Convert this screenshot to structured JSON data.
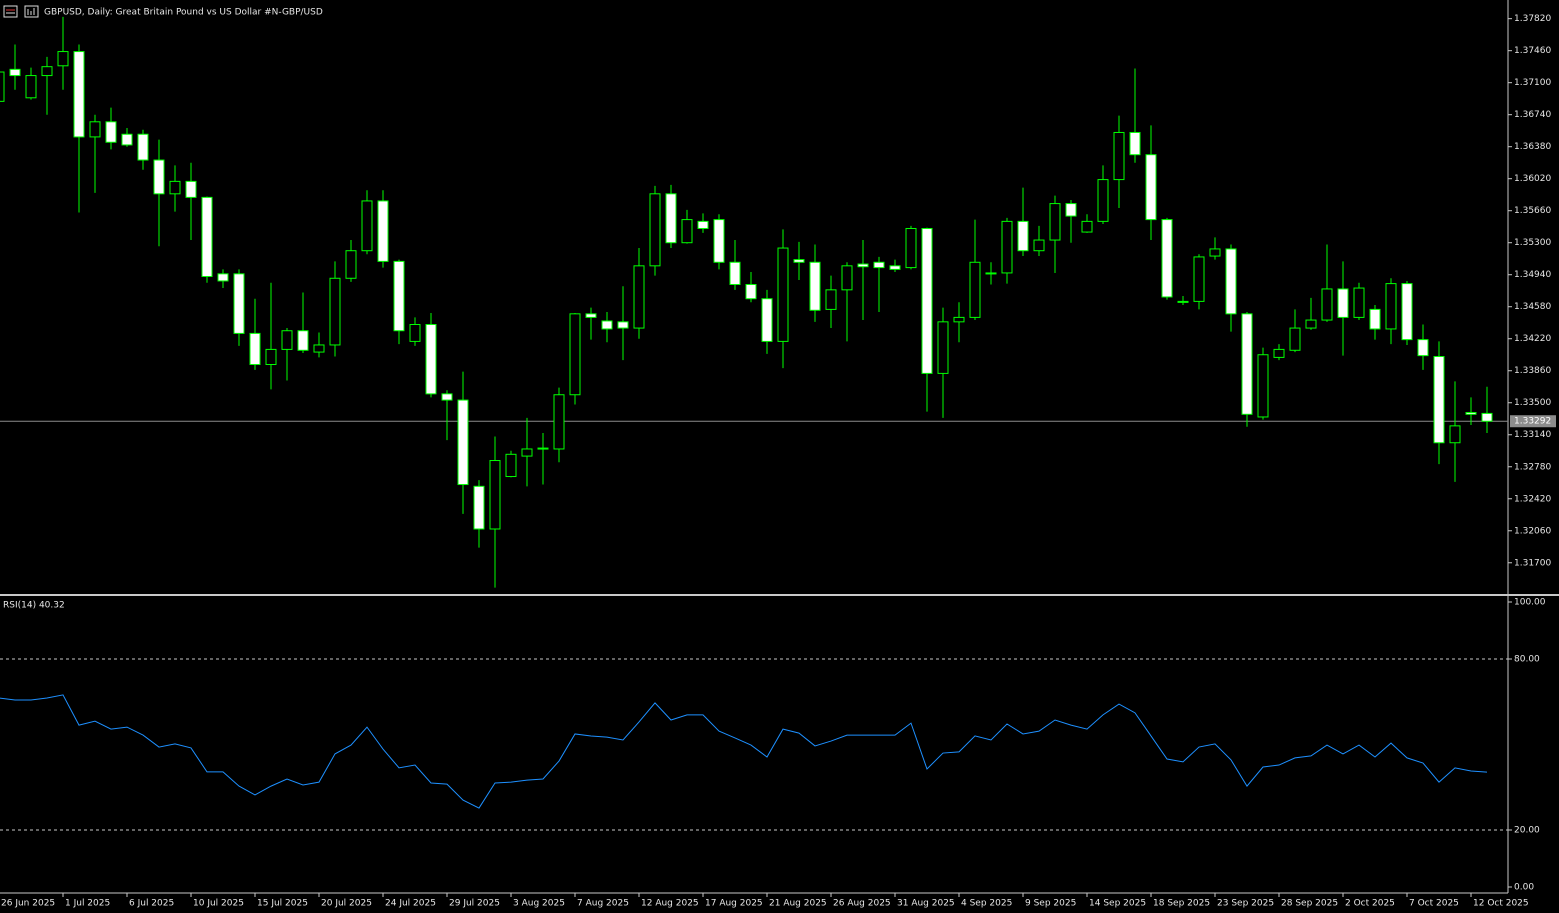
{
  "chart_data": [
    {
      "type": "candlestick",
      "title": "GBPUSD, Daily:  Great Britain Pound vs US Dollar #N-GBP/USD",
      "categories": [
        "26 Jun 2025",
        null,
        null,
        null,
        "1 Jul 2025",
        null,
        null,
        null,
        "6 Jul 2025",
        null,
        null,
        null,
        "10 Jul 2025",
        null,
        null,
        null,
        "15 Jul 2025",
        null,
        null,
        null,
        "20 Jul 2025",
        null,
        null,
        null,
        "24 Jul 2025",
        null,
        null,
        null,
        "29 Jul 2025",
        null,
        null,
        null,
        "3 Aug 2025",
        null,
        null,
        null,
        "7 Aug 2025",
        null,
        null,
        null,
        "12 Aug 2025",
        null,
        null,
        null,
        "17 Aug 2025",
        null,
        null,
        null,
        "21 Aug 2025",
        null,
        null,
        null,
        "26 Aug 2025",
        null,
        null,
        null,
        "31 Aug 2025",
        null,
        null,
        null,
        "4 Sep 2025",
        null,
        null,
        null,
        "9 Sep 2025",
        null,
        null,
        null,
        "14 Sep 2025",
        null,
        null,
        null,
        "18 Sep 2025",
        null,
        null,
        null,
        "23 Sep 2025",
        null,
        null,
        null,
        "28 Sep 2025",
        null,
        null,
        null,
        "2 Oct 2025",
        null,
        null,
        null,
        "7 Oct 2025",
        null,
        null,
        null,
        "12 Oct 2025",
        null
      ],
      "open": [
        1.3689,
        1.3725,
        1.3693,
        1.3718,
        1.3729,
        1.3745,
        1.3649,
        1.3666,
        1.3652,
        1.3652,
        1.3623,
        1.3585,
        1.3599,
        1.3581,
        1.3495,
        1.3495,
        1.3428,
        1.3393,
        1.341,
        1.3431,
        1.3407,
        1.3415,
        1.349,
        1.3521,
        1.3577,
        1.3509,
        1.3419,
        1.3438,
        1.336,
        1.3353,
        1.3256,
        1.3208,
        1.3267,
        1.329,
        1.3298,
        1.3298,
        1.3359,
        1.345,
        1.3442,
        1.3441,
        1.3434,
        1.3504,
        1.3585,
        1.353,
        1.3554,
        1.3556,
        1.3508,
        1.3483,
        1.3467,
        1.3419,
        1.3511,
        1.3508,
        1.3455,
        1.3477,
        1.3506,
        1.3508,
        1.3504,
        1.3502,
        1.3546,
        1.3383,
        1.3441,
        1.3446,
        1.3495,
        1.3496,
        1.3554,
        1.3521,
        1.3533,
        1.3574,
        1.3542,
        1.3554,
        1.3601,
        1.3654,
        1.3629,
        1.3556,
        1.3464,
        1.3464,
        1.3515,
        1.3523,
        1.345,
        1.3334,
        1.3401,
        1.3409,
        1.3434,
        1.3443,
        1.3478,
        1.3446,
        1.3455,
        1.3433,
        1.3484,
        1.3421,
        1.3402,
        1.3305,
        1.3339,
        1.3338
      ],
      "high": [
        1.3753,
        1.3753,
        1.3727,
        1.3739,
        1.3784,
        1.3753,
        1.3674,
        1.3682,
        1.3659,
        1.3657,
        1.3646,
        1.3617,
        1.362,
        1.3582,
        1.35,
        1.35,
        1.3467,
        1.3485,
        1.3434,
        1.3474,
        1.3429,
        1.3509,
        1.3533,
        1.3589,
        1.3589,
        1.3511,
        1.3446,
        1.3451,
        1.3364,
        1.3385,
        1.3263,
        1.3312,
        1.3296,
        1.3333,
        1.3316,
        1.3367,
        1.3451,
        1.3457,
        1.3452,
        1.3481,
        1.3524,
        1.3594,
        1.3595,
        1.3567,
        1.3563,
        1.3562,
        1.3533,
        1.3497,
        1.3477,
        1.3545,
        1.3531,
        1.3528,
        1.3493,
        1.3508,
        1.3533,
        1.3514,
        1.3511,
        1.3549,
        1.3547,
        1.3457,
        1.3463,
        1.3556,
        1.3508,
        1.3558,
        1.3592,
        1.3549,
        1.3583,
        1.3578,
        1.3562,
        1.3617,
        1.3673,
        1.3726,
        1.3662,
        1.3558,
        1.347,
        1.3517,
        1.3536,
        1.3528,
        1.3452,
        1.3412,
        1.3416,
        1.3455,
        1.3468,
        1.3528,
        1.3509,
        1.3485,
        1.346,
        1.349,
        1.3487,
        1.3438,
        1.3419,
        1.3374,
        1.3356,
        1.3368
      ],
      "low": [
        1.3686,
        1.3702,
        1.3691,
        1.3674,
        1.3702,
        1.3564,
        1.3586,
        1.3635,
        1.3638,
        1.3612,
        1.3526,
        1.3565,
        1.3533,
        1.3485,
        1.3479,
        1.3414,
        1.3387,
        1.3365,
        1.3375,
        1.3406,
        1.3401,
        1.3402,
        1.3486,
        1.3517,
        1.3502,
        1.3416,
        1.3414,
        1.3356,
        1.3308,
        1.3225,
        1.3187,
        1.3142,
        1.3266,
        1.3256,
        1.3258,
        1.3283,
        1.3348,
        1.3421,
        1.3418,
        1.3398,
        1.3422,
        1.3493,
        1.3524,
        1.3529,
        1.3541,
        1.35,
        1.3477,
        1.3463,
        1.3405,
        1.3389,
        1.3488,
        1.3441,
        1.3434,
        1.3419,
        1.3443,
        1.3452,
        1.3497,
        1.35,
        1.334,
        1.3333,
        1.3418,
        1.3443,
        1.3483,
        1.3484,
        1.3515,
        1.3515,
        1.3496,
        1.353,
        1.3541,
        1.3551,
        1.3569,
        1.362,
        1.3533,
        1.3466,
        1.346,
        1.3455,
        1.3511,
        1.343,
        1.3323,
        1.3331,
        1.3398,
        1.3407,
        1.3432,
        1.3441,
        1.3403,
        1.3443,
        1.3421,
        1.3416,
        1.3415,
        1.3387,
        1.3281,
        1.3261,
        1.3325,
        1.3316
      ],
      "close": [
        1.3722,
        1.3718,
        1.3718,
        1.3728,
        1.3745,
        1.3649,
        1.3666,
        1.3643,
        1.364,
        1.3623,
        1.3585,
        1.3599,
        1.3581,
        1.3492,
        1.3487,
        1.3428,
        1.3393,
        1.341,
        1.3431,
        1.3409,
        1.3415,
        1.349,
        1.3521,
        1.3577,
        1.3509,
        1.3431,
        1.3438,
        1.336,
        1.3353,
        1.3258,
        1.3208,
        1.3285,
        1.3292,
        1.3298,
        1.3299,
        1.3359,
        1.345,
        1.3446,
        1.3433,
        1.3434,
        1.3504,
        1.3585,
        1.353,
        1.3556,
        1.3546,
        1.3508,
        1.3483,
        1.3467,
        1.3419,
        1.3524,
        1.3508,
        1.3454,
        1.3477,
        1.3504,
        1.3503,
        1.3502,
        1.35,
        1.3546,
        1.3383,
        1.3441,
        1.3446,
        1.3508,
        1.3496,
        1.3554,
        1.3521,
        1.3533,
        1.3574,
        1.356,
        1.3554,
        1.3601,
        1.3654,
        1.3629,
        1.3556,
        1.3469,
        1.3463,
        1.3514,
        1.3523,
        1.345,
        1.3337,
        1.3404,
        1.341,
        1.3434,
        1.3443,
        1.3478,
        1.3446,
        1.3479,
        1.3433,
        1.3484,
        1.3421,
        1.3403,
        1.3305,
        1.3324,
        1.3337,
        1.33292
      ],
      "up_color": "#00ff00",
      "down_color": "#ffffff",
      "last_price": 1.33292,
      "ylim": [
        1.3136,
        1.3803
      ],
      "yticks": [
        {
          "value": 1.3782,
          "label": "1.37820"
        },
        {
          "value": 1.3746,
          "label": "1.37460"
        },
        {
          "value": 1.371,
          "label": "1.37100"
        },
        {
          "value": 1.3674,
          "label": "1.36740"
        },
        {
          "value": 1.3638,
          "label": "1.36380"
        },
        {
          "value": 1.3602,
          "label": "1.36020"
        },
        {
          "value": 1.3566,
          "label": "1.35660"
        },
        {
          "value": 1.353,
          "label": "1.35300"
        },
        {
          "value": 1.3494,
          "label": "1.34940"
        },
        {
          "value": 1.3458,
          "label": "1.34580"
        },
        {
          "value": 1.3422,
          "label": "1.34220"
        },
        {
          "value": 1.3386,
          "label": "1.33860"
        },
        {
          "value": 1.335,
          "label": "1.33500"
        },
        {
          "value": 1.3314,
          "label": "1.33140"
        },
        {
          "value": 1.3278,
          "label": "1.32780"
        },
        {
          "value": 1.3242,
          "label": "1.32420"
        },
        {
          "value": 1.3206,
          "label": "1.32060"
        },
        {
          "value": 1.317,
          "label": "1.31700"
        }
      ],
      "grid": false
    },
    {
      "type": "line",
      "title": "RSI(14) 40.32",
      "values": [
        66.3,
        65.6,
        65.6,
        66.3,
        67.4,
        56.8,
        58.2,
        55.4,
        56.1,
        53.3,
        49.1,
        50.2,
        48.8,
        40.4,
        40.4,
        35.4,
        32.3,
        35.4,
        37.9,
        35.8,
        36.8,
        46.7,
        49.8,
        56.1,
        48.4,
        41.8,
        42.8,
        36.5,
        36.1,
        30.5,
        27.7,
        36.5,
        36.8,
        37.5,
        37.9,
        44.2,
        53.7,
        53.0,
        52.6,
        51.6,
        57.9,
        64.6,
        58.6,
        60.4,
        60.4,
        54.7,
        52.3,
        49.8,
        45.6,
        55.4,
        54.0,
        49.5,
        51.2,
        53.3,
        53.3,
        53.3,
        53.3,
        57.5,
        41.4,
        47.0,
        47.4,
        53.0,
        51.6,
        57.2,
        53.7,
        54.7,
        58.6,
        56.8,
        55.4,
        60.4,
        64.2,
        61.1,
        53.0,
        44.9,
        43.9,
        49.1,
        50.2,
        44.6,
        35.4,
        42.1,
        42.8,
        45.3,
        46.0,
        49.8,
        46.7,
        49.8,
        45.6,
        50.5,
        45.3,
        43.5,
        36.8,
        41.8,
        40.7,
        40.32
      ],
      "color": "#1e90ff",
      "ylim": [
        0,
        100
      ],
      "yticks": [
        {
          "value": 100,
          "label": "100.00"
        },
        {
          "value": 80,
          "label": "80.00"
        },
        {
          "value": 20,
          "label": "20.00"
        },
        {
          "value": 0,
          "label": "0.00"
        }
      ]
    }
  ]
}
